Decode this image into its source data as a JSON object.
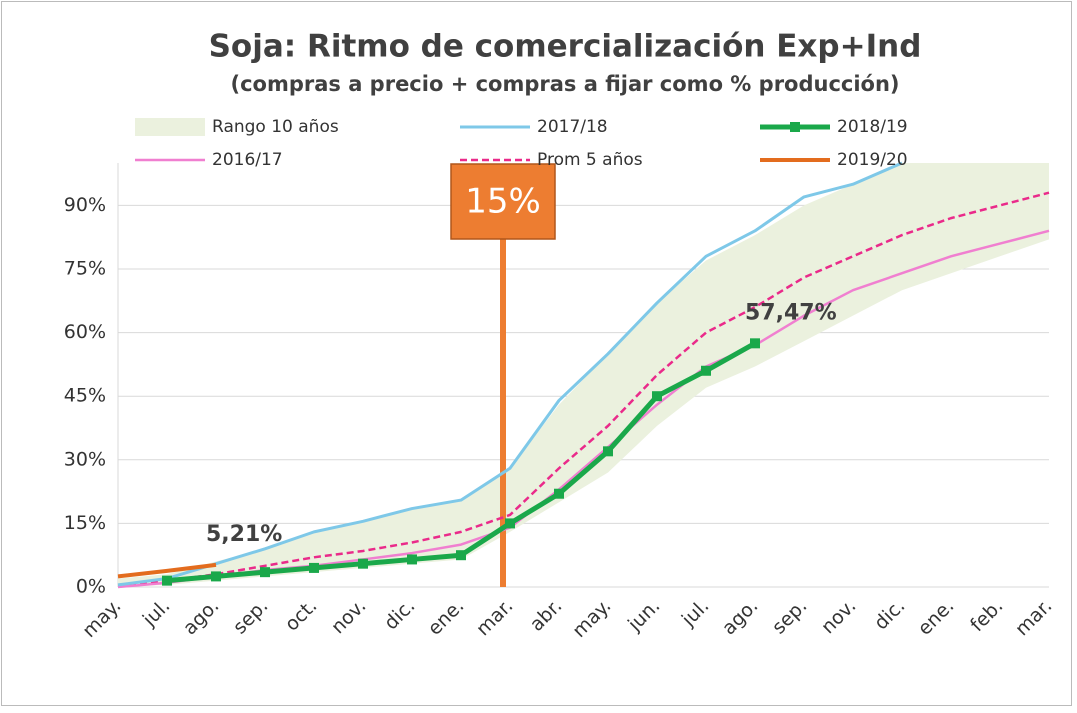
{
  "chart_data": {
    "type": "line",
    "title": "Soja: Ritmo de comercialización Exp+Ind",
    "subtitle": "(compras a precio + compras a fijar como % producción)",
    "categories": [
      "may.",
      "jul.",
      "ago.",
      "sep.",
      "oct.",
      "nov.",
      "dic.",
      "ene.",
      "mar.",
      "abr.",
      "may.",
      "jun.",
      "jul.",
      "ago.",
      "sep.",
      "nov.",
      "dic.",
      "ene.",
      "feb.",
      "mar."
    ],
    "ylim": [
      0,
      100
    ],
    "yticks": [
      {
        "value": 0,
        "label": "0%"
      },
      {
        "value": 15,
        "label": "15%"
      },
      {
        "value": 30,
        "label": "30%"
      },
      {
        "value": 45,
        "label": "45%"
      },
      {
        "value": 60,
        "label": "60%"
      },
      {
        "value": 75,
        "label": "75%"
      },
      {
        "value": 90,
        "label": "90%"
      }
    ],
    "grid": true,
    "range": {
      "name": "Rango 10 años",
      "color": "#ebf1de",
      "low": [
        0,
        0.5,
        1.5,
        2.5,
        3.5,
        4.5,
        5.5,
        6.5,
        13,
        20,
        27,
        38,
        47,
        52,
        58,
        64,
        70,
        74,
        78,
        82
      ],
      "high": [
        2,
        3,
        6,
        9,
        13,
        15.5,
        18.5,
        20.5,
        28,
        43,
        55,
        67,
        77,
        83,
        90,
        95,
        100,
        100,
        100,
        100
      ]
    },
    "series": [
      {
        "name": "2017/18",
        "color": "#7ec8e8",
        "width": 3,
        "values": [
          0.5,
          2,
          5.5,
          9,
          13,
          15.5,
          18.5,
          20.5,
          28,
          44,
          55,
          67,
          78,
          84,
          92,
          95,
          100,
          null,
          null,
          null
        ]
      },
      {
        "name": "2018/19",
        "color": "#1aa84a",
        "width": 5,
        "markers": true,
        "values": [
          null,
          1.5,
          2.5,
          3.5,
          4.5,
          5.5,
          6.5,
          7.5,
          15,
          22,
          32,
          45,
          51,
          57.47,
          null,
          null,
          null,
          null,
          null,
          null
        ],
        "value_labels": [
          null,
          null,
          null,
          null,
          null,
          null,
          null,
          null,
          null,
          null,
          null,
          null,
          null,
          "57,47%",
          null,
          null,
          null,
          null,
          null,
          null
        ]
      },
      {
        "name": "2016/17",
        "color": "#f07fd0",
        "width": 2.5,
        "values": [
          0,
          1,
          2.5,
          4,
          5,
          6.5,
          8,
          10,
          14,
          23,
          33,
          43,
          52,
          57,
          64,
          70,
          74,
          78,
          81,
          84
        ]
      },
      {
        "name": "Prom 5 años",
        "color": "#ea2a8a",
        "width": 2.5,
        "dashed": true,
        "values": [
          0.5,
          1.5,
          3,
          5,
          7,
          8.5,
          10.5,
          13,
          17,
          28,
          38,
          50,
          60,
          66,
          73,
          78,
          83,
          87,
          90,
          93
        ]
      },
      {
        "name": "2019/20",
        "color": "#e36c1e",
        "width": 4,
        "values": [
          2.5,
          3.8,
          5.21,
          null,
          null,
          null,
          null,
          null,
          null,
          null,
          null,
          null,
          null,
          null,
          null,
          null,
          null,
          null,
          null,
          null
        ],
        "value_labels": [
          null,
          null,
          "5,21%",
          null,
          null,
          null,
          null,
          null,
          null,
          null,
          null,
          null,
          null,
          null,
          null,
          null,
          null,
          null,
          null,
          null
        ]
      }
    ],
    "annotation": "15%"
  }
}
